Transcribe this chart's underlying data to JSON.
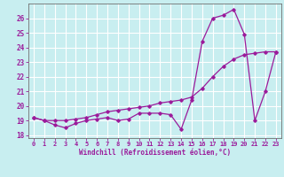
{
  "line1_x": [
    0,
    1,
    2,
    3,
    4,
    5,
    6,
    7,
    8,
    9,
    10,
    11,
    12,
    13,
    14,
    15,
    16,
    17,
    18,
    19,
    20,
    21,
    22,
    23
  ],
  "line1_y": [
    19.2,
    19.0,
    18.7,
    18.5,
    18.8,
    19.0,
    19.1,
    19.2,
    19.0,
    19.1,
    19.5,
    19.5,
    19.5,
    19.4,
    18.4,
    20.4,
    24.4,
    26.0,
    26.2,
    26.6,
    24.9,
    19.0,
    21.0,
    23.7
  ],
  "line2_x": [
    0,
    1,
    2,
    3,
    4,
    5,
    6,
    7,
    8,
    9,
    10,
    11,
    12,
    13,
    14,
    15,
    16,
    17,
    18,
    19,
    20,
    21,
    22,
    23
  ],
  "line2_y": [
    19.2,
    19.0,
    19.0,
    19.0,
    19.1,
    19.2,
    19.4,
    19.6,
    19.7,
    19.8,
    19.9,
    20.0,
    20.2,
    20.3,
    20.4,
    20.6,
    21.2,
    22.0,
    22.7,
    23.2,
    23.5,
    23.6,
    23.7,
    23.7
  ],
  "line_color": "#9b1b9b",
  "bg_color": "#c8eef0",
  "grid_color": "#ffffff",
  "xlabel": "Windchill (Refroidissement éolien,°C)",
  "ylim": [
    17.8,
    27.0
  ],
  "xlim_min": -0.5,
  "xlim_max": 23.5,
  "yticks": [
    18,
    19,
    20,
    21,
    22,
    23,
    24,
    25,
    26
  ],
  "xticks": [
    0,
    1,
    2,
    3,
    4,
    5,
    6,
    7,
    8,
    9,
    10,
    11,
    12,
    13,
    14,
    15,
    16,
    17,
    18,
    19,
    20,
    21,
    22,
    23
  ]
}
